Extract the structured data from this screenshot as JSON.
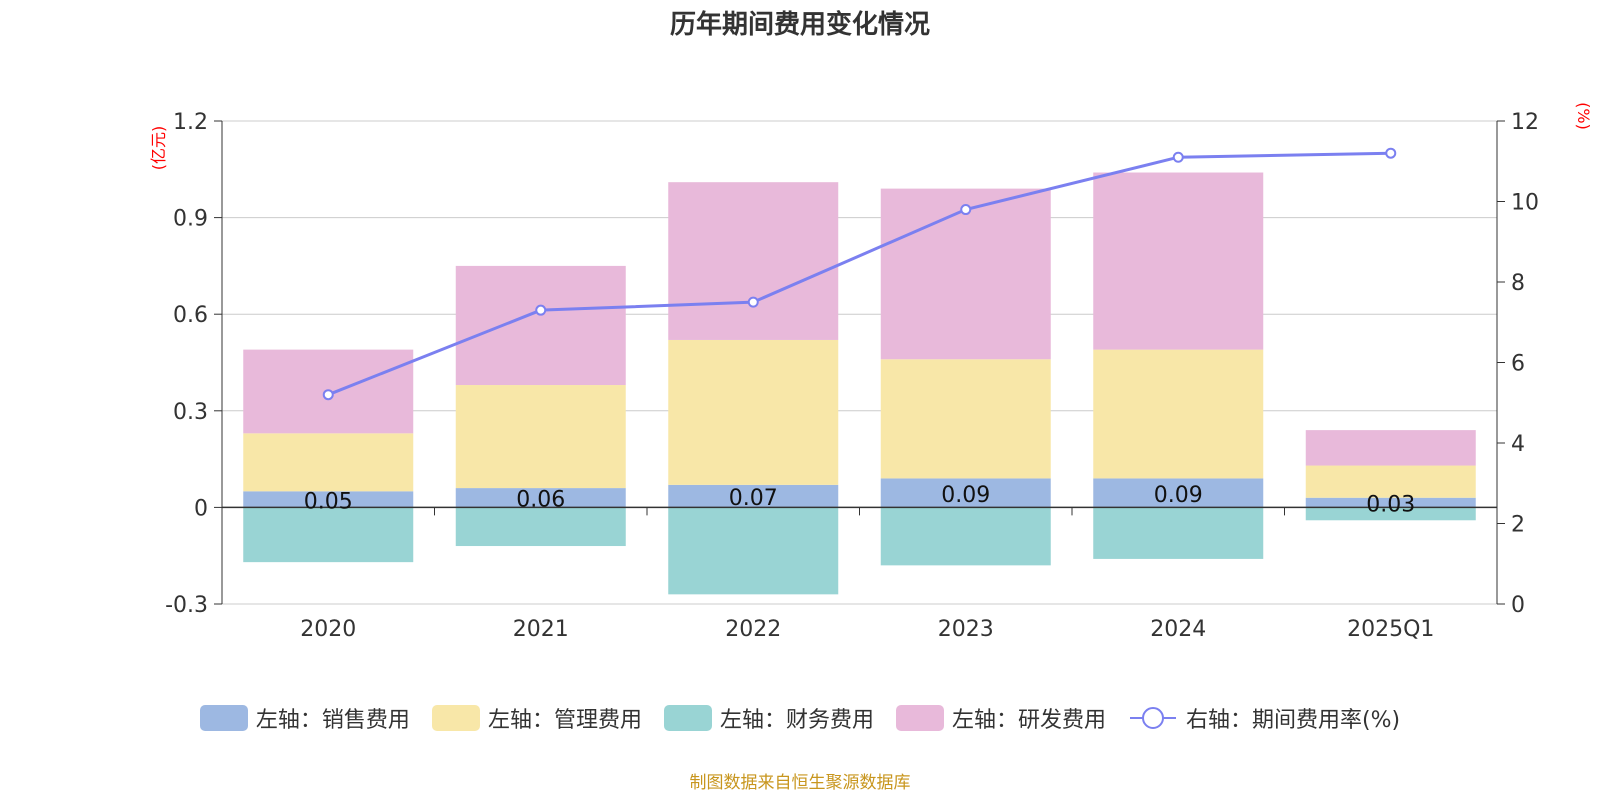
{
  "chart_data": {
    "type": "bar",
    "title": "历年期间费用变化情况",
    "categories": [
      "2020",
      "2021",
      "2022",
      "2023",
      "2024",
      "2025Q1"
    ],
    "y_left": {
      "unit_label": "(亿元)",
      "ylim": [
        -0.3,
        1.2
      ],
      "ticks": [
        "-0.3",
        "0",
        "0.3",
        "0.6",
        "0.9",
        "1.2"
      ]
    },
    "y_right": {
      "unit_label": "(%)",
      "ylim": [
        0,
        12
      ],
      "ticks": [
        "0",
        "2",
        "4",
        "6",
        "8",
        "10",
        "12"
      ]
    },
    "grid": true,
    "legend_position": "bottom",
    "series": [
      {
        "name": "左轴：销售费用",
        "type": "bar",
        "stack": true,
        "color": "#9db8e2",
        "values": [
          0.05,
          0.06,
          0.07,
          0.09,
          0.09,
          0.03
        ],
        "data_labels": [
          "0.05",
          "0.06",
          "0.07",
          "0.09",
          "0.09",
          "0.03"
        ]
      },
      {
        "name": "左轴：管理费用",
        "type": "bar",
        "stack": true,
        "color": "#f8e7a8",
        "values": [
          0.18,
          0.32,
          0.45,
          0.37,
          0.4,
          0.1
        ]
      },
      {
        "name": "左轴：财务费用",
        "type": "bar",
        "stack": true,
        "color": "#99d4d4",
        "values": [
          -0.17,
          -0.12,
          -0.27,
          -0.18,
          -0.16,
          -0.04
        ]
      },
      {
        "name": "左轴：研发费用",
        "type": "bar",
        "stack": true,
        "color": "#e8b9da",
        "values": [
          0.26,
          0.37,
          0.49,
          0.53,
          0.55,
          0.11
        ]
      },
      {
        "name": "右轴：期间费用率(%)",
        "type": "line",
        "axis": "right",
        "color": "#7b80f0",
        "values": [
          5.2,
          7.3,
          7.5,
          9.8,
          11.1,
          11.2
        ]
      }
    ]
  },
  "source": "制图数据来自恒生聚源数据库"
}
